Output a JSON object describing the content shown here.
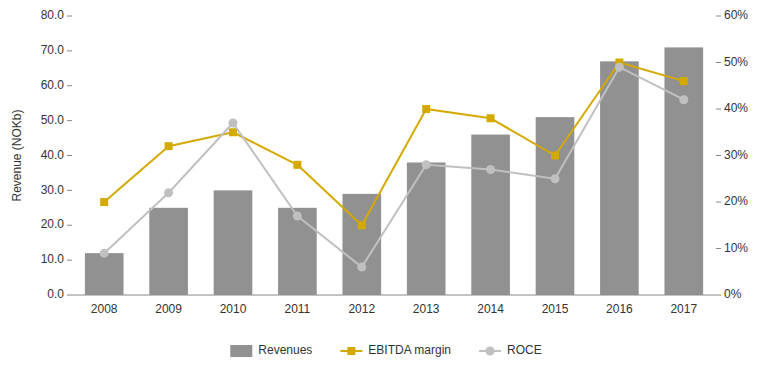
{
  "chart_data": {
    "type": "bar",
    "ylabel": "Revenue (NOKb)",
    "categories": [
      "2008",
      "2009",
      "2010",
      "2011",
      "2012",
      "2013",
      "2014",
      "2015",
      "2016",
      "2017"
    ],
    "series": [
      {
        "name": "Revenues",
        "type": "bar",
        "color": "#919191",
        "values": [
          12,
          25,
          30,
          25,
          29,
          38,
          46,
          51,
          67,
          71
        ]
      },
      {
        "name": "EBITDA margin",
        "type": "line",
        "color": "#d4a900",
        "marker": "square",
        "axis": "y2",
        "values": [
          20,
          32,
          35,
          28,
          15,
          40,
          38,
          30,
          50,
          46
        ]
      },
      {
        "name": "ROCE",
        "type": "line",
        "color": "#c0c0c0",
        "marker": "circle",
        "axis": "y2",
        "values": [
          9,
          22,
          37,
          17,
          6,
          28,
          27,
          25,
          49,
          42
        ]
      }
    ],
    "ylim": [
      0,
      80
    ],
    "yticks": [
      {
        "value": 0,
        "label": "0.0"
      },
      {
        "value": 10,
        "label": "10.0"
      },
      {
        "value": 20,
        "label": "20.0"
      },
      {
        "value": 30,
        "label": "30.0"
      },
      {
        "value": 40,
        "label": "40.0"
      },
      {
        "value": 50,
        "label": "50.0"
      },
      {
        "value": 60,
        "label": "60.0"
      },
      {
        "value": 70,
        "label": "70.0"
      },
      {
        "value": 80,
        "label": "80.0"
      }
    ],
    "y2lim": [
      0,
      60
    ],
    "y2ticks": [
      {
        "value": 0,
        "label": "0%"
      },
      {
        "value": 10,
        "label": "10%"
      },
      {
        "value": 20,
        "label": "20%"
      },
      {
        "value": 30,
        "label": "30%"
      },
      {
        "value": 40,
        "label": "40%"
      },
      {
        "value": 50,
        "label": "50%"
      },
      {
        "value": 60,
        "label": "60%"
      }
    ],
    "grid": false,
    "legend": "bottom"
  }
}
